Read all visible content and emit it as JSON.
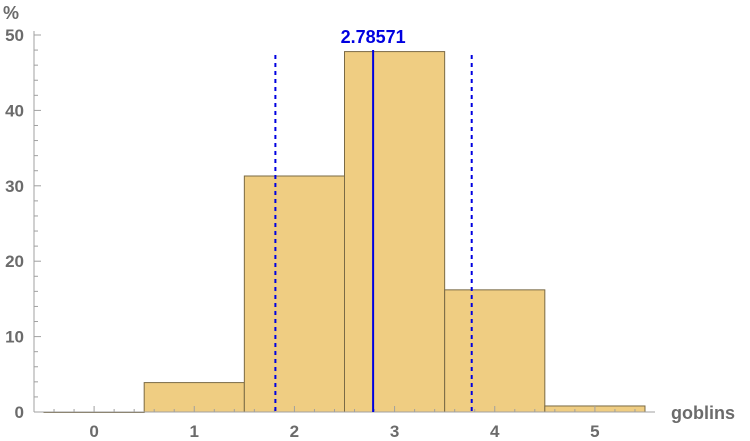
{
  "chart_data": {
    "type": "bar",
    "xlabel": "goblins",
    "ylabel": "%",
    "categories": [
      "0",
      "1",
      "2",
      "3",
      "4",
      "5"
    ],
    "values": [
      0,
      3.9,
      31.3,
      47.8,
      16.2,
      0.8
    ],
    "xlim": [
      -0.6,
      5.6
    ],
    "ylim": [
      0,
      50
    ],
    "x_ticks": [
      0,
      1,
      2,
      3,
      4,
      5
    ],
    "y_ticks": [
      0,
      10,
      20,
      30,
      40,
      50
    ],
    "mean": 2.78571,
    "mean_label": "2.78571",
    "mean_minus_sd": 1.81,
    "mean_plus_sd": 3.77,
    "colors": {
      "bar_fill": "#efcd82",
      "bar_stroke": "#7a6a45",
      "axis": "#a0a0a0",
      "text": "#6b6b6b",
      "mean_line": "#0000e0"
    },
    "grid": false,
    "legend": "none"
  }
}
